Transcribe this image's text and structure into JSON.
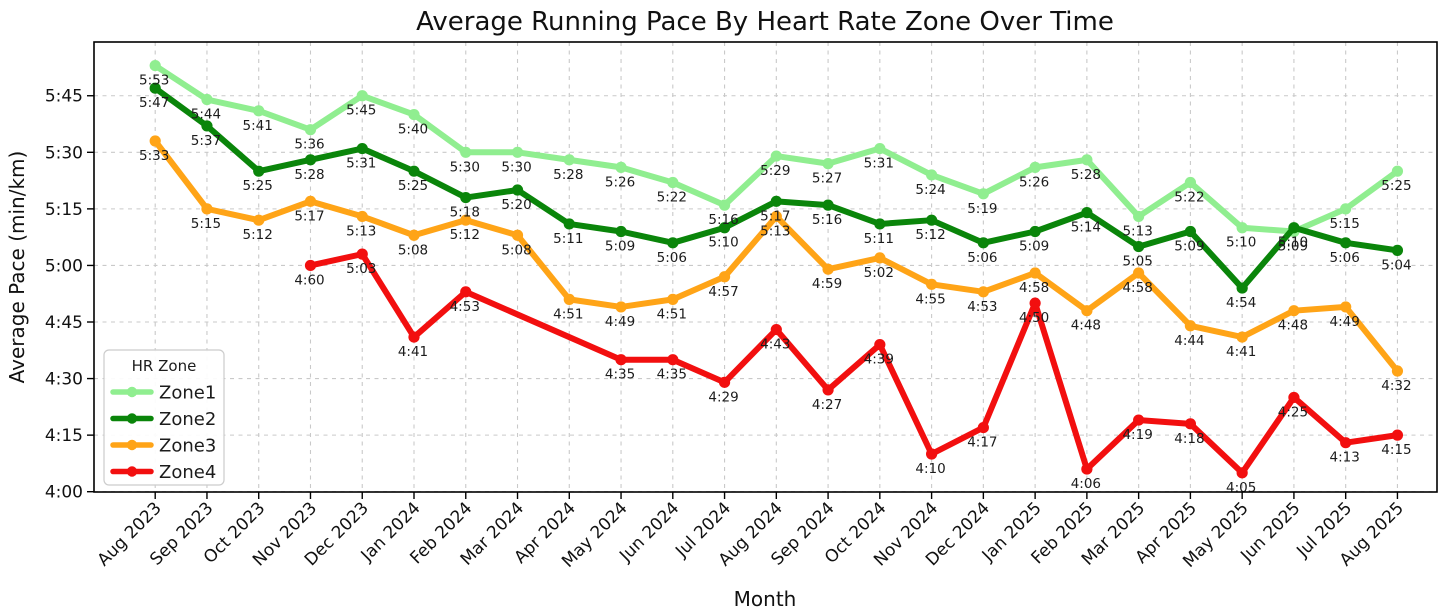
{
  "chart_data": {
    "type": "line",
    "title": "Average Running Pace By Heart Rate Zone Over Time",
    "xlabel": "Month",
    "ylabel": "Average Pace (min/km)",
    "legend_title": "HR Zone",
    "legend_position": "lower left",
    "grid": true,
    "y_ticks": [
      "4:00",
      "4:15",
      "4:30",
      "4:45",
      "5:00",
      "5:15",
      "5:30",
      "5:45"
    ],
    "ylim_note": "paces shown min:sec per km, 4:00 bottom to ~6:00 top",
    "categories": [
      "Aug 2023",
      "Sep 2023",
      "Oct 2023",
      "Nov 2023",
      "Dec 2023",
      "Jan 2024",
      "Feb 2024",
      "Mar 2024",
      "Apr 2024",
      "May 2024",
      "Jun 2024",
      "Jul 2024",
      "Aug 2024",
      "Sep 2024",
      "Oct 2024",
      "Nov 2024",
      "Dec 2024",
      "Jan 2025",
      "Feb 2025",
      "Mar 2025",
      "Apr 2025",
      "May 2025",
      "Jun 2025",
      "Jul 2025",
      "Aug 2025"
    ],
    "series": [
      {
        "name": "Zone1",
        "color": "#90EE90",
        "values": [
          "5:53",
          "5:44",
          "5:41",
          "5:36",
          "5:45",
          "5:40",
          "5:30",
          "5:30",
          "5:28",
          "5:26",
          "5:22",
          "5:16",
          "5:29",
          "5:27",
          "5:31",
          "5:24",
          "5:19",
          "5:26",
          "5:28",
          "5:13",
          "5:22",
          "5:10",
          "5:09",
          "5:15",
          "5:25"
        ]
      },
      {
        "name": "Zone2",
        "color": "#0A850A",
        "values": [
          "5:47",
          "5:37",
          "5:25",
          "5:28",
          "5:31",
          "5:25",
          "5:18",
          "5:20",
          "5:11",
          "5:09",
          "5:06",
          "5:10",
          "5:17",
          "5:16",
          "5:11",
          "5:12",
          "5:06",
          "5:09",
          "5:14",
          "5:05",
          "5:09",
          "4:54",
          "5:10",
          "5:06",
          "5:04"
        ]
      },
      {
        "name": "Zone3",
        "color": "#FFA417",
        "values": [
          "5:33",
          "5:15",
          "5:12",
          "5:17",
          "5:13",
          "5:08",
          "5:12",
          "5:08",
          "4:51",
          "4:49",
          "4:51",
          "4:57",
          "5:13",
          "4:59",
          "5:02",
          "4:55",
          "4:53",
          "4:58",
          "4:48",
          "4:58",
          "4:44",
          "4:41",
          "4:48",
          "4:49",
          "4:32"
        ]
      },
      {
        "name": "Zone4",
        "color": "#F20F0F",
        "values": [
          null,
          null,
          null,
          "4:60",
          "5:03",
          "4:41",
          "4:53",
          null,
          null,
          "4:35",
          "4:35",
          "4:29",
          "4:43",
          "4:27",
          "4:39",
          "4:10",
          "4:17",
          "4:50",
          "4:06",
          "4:19",
          "4:18",
          "4:05",
          "4:25",
          "4:13",
          "4:15"
        ]
      }
    ]
  }
}
